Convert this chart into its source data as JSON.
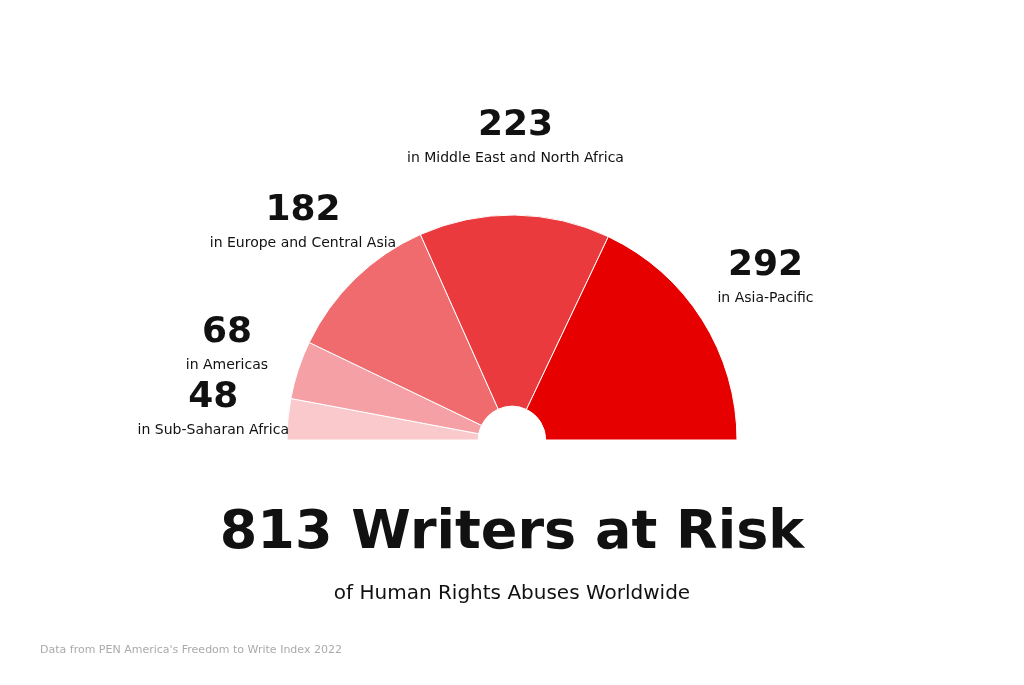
{
  "chart_data": {
    "type": "donut",
    "title": "813 Writers at Risk",
    "subtitle": "of Human Rights Abuses Worldwide",
    "categories": [
      "in Sub-Saharan Africa",
      "in Americas",
      "in Europe and Central Asia",
      "in Middle East and North Africa",
      "in Asia-Pacific"
    ],
    "values": [
      48,
      68,
      182,
      223,
      292
    ],
    "colors": [
      "#f9c9cc",
      "#f5a0a5",
      "#ef6b6e",
      "#ea3a3e",
      "#e60000"
    ],
    "data_labels": true,
    "annotations": [
      "Data from PEN America's Freedom to Write Index 2022"
    ]
  }
}
